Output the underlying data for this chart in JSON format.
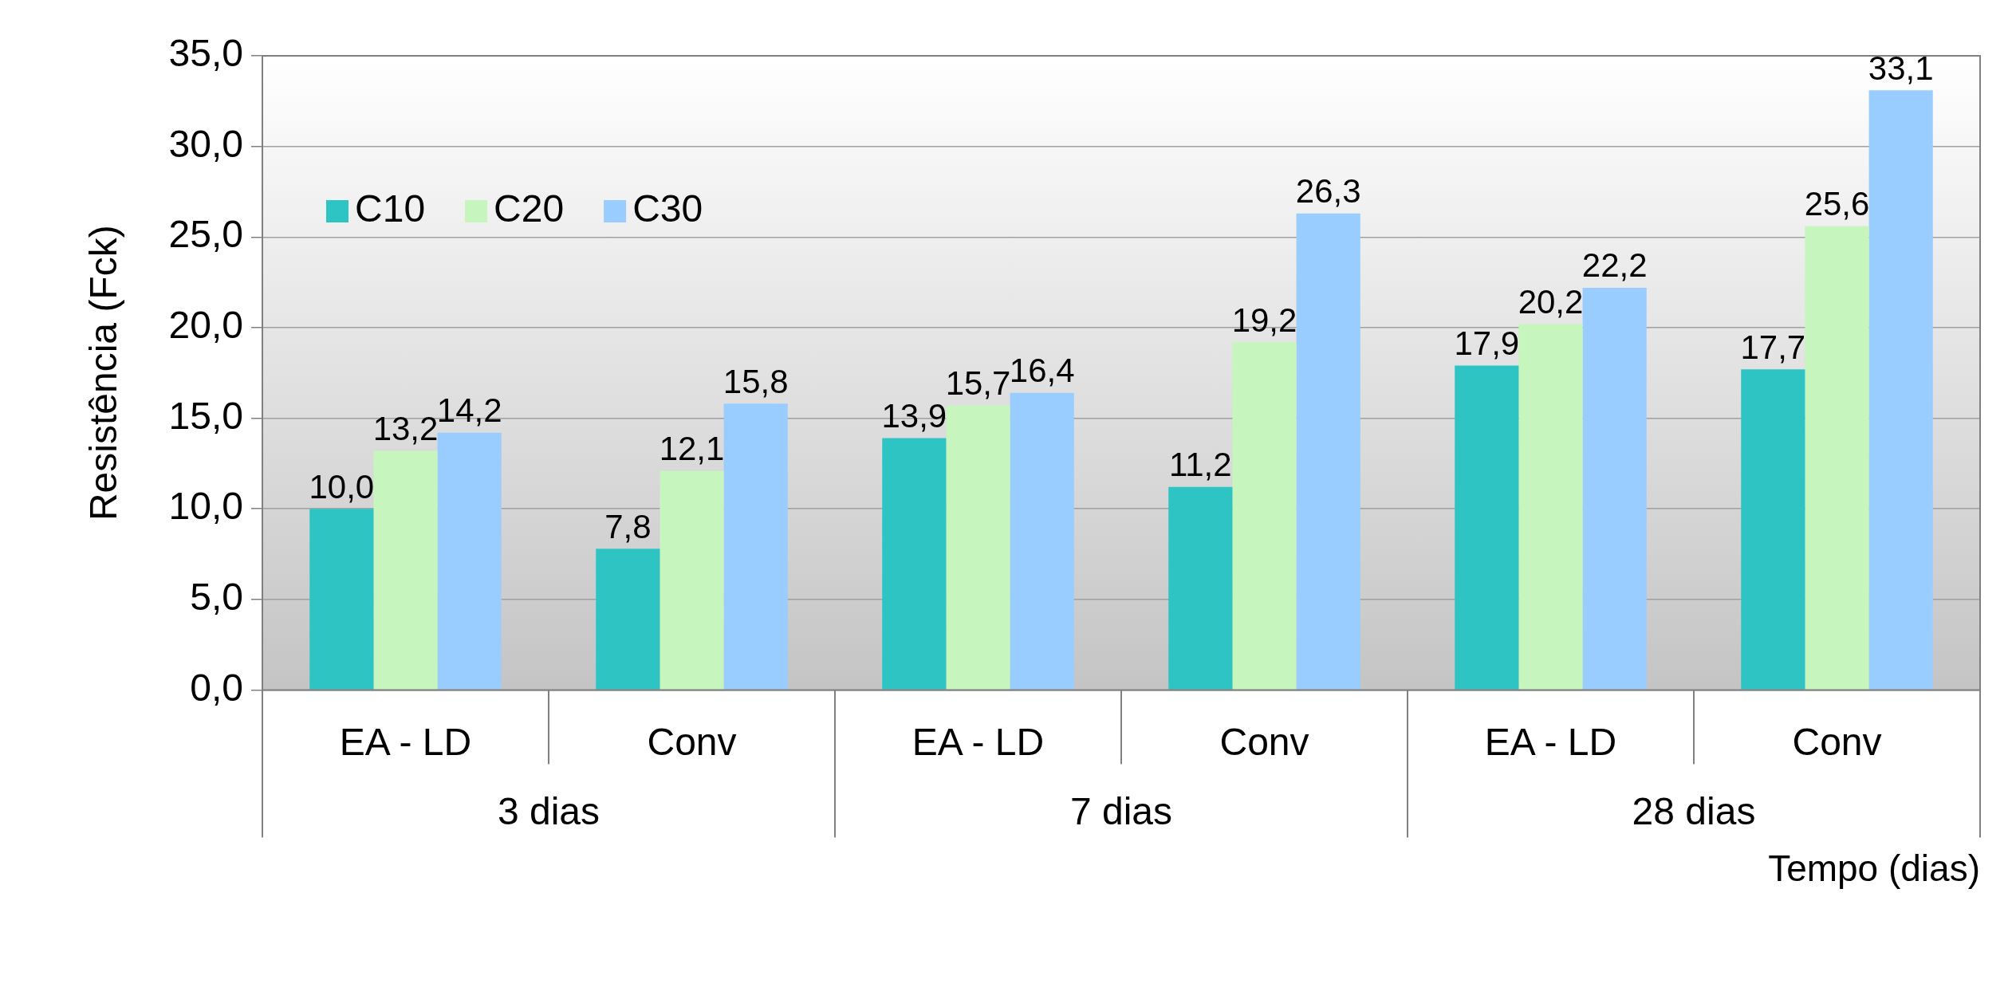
{
  "chart_data": {
    "type": "bar",
    "xlabel": "Tempo (dias)",
    "ylabel": "Resistência (Fck)",
    "categories": [
      "EA - LD",
      "Conv",
      "EA - LD",
      "Conv",
      "EA - LD",
      "Conv"
    ],
    "annotations": [
      "3 dias",
      "7 dias",
      "28 dias"
    ],
    "series": [
      {
        "name": "C10",
        "color": "#2ec4c4",
        "values": [
          10.0,
          7.8,
          13.9,
          11.2,
          17.9,
          17.7
        ],
        "value_labels": [
          "10,0",
          "7,8",
          "13,9",
          "11,2",
          "17,9",
          "17,7"
        ]
      },
      {
        "name": "C20",
        "color": "#c6f5bd",
        "values": [
          13.2,
          12.1,
          15.7,
          19.2,
          20.2,
          25.6
        ],
        "value_labels": [
          "13,2",
          "12,1",
          "15,7",
          "19,2",
          "20,2",
          "25,6"
        ]
      },
      {
        "name": "C30",
        "color": "#99ccff",
        "values": [
          14.2,
          15.8,
          16.4,
          26.3,
          22.2,
          33.1
        ],
        "value_labels": [
          "14,2",
          "15,8",
          "16,4",
          "26,3",
          "22,2",
          "33,1"
        ]
      }
    ],
    "ylim": [
      0,
      35
    ],
    "yticks": [
      {
        "value": 0,
        "label": "0,0"
      },
      {
        "value": 5,
        "label": "5,0"
      },
      {
        "value": 10,
        "label": "10,0"
      },
      {
        "value": 15,
        "label": "15,0"
      },
      {
        "value": 20,
        "label": "20,0"
      },
      {
        "value": 25,
        "label": "25,0"
      },
      {
        "value": 30,
        "label": "30,0"
      },
      {
        "value": 35,
        "label": "35,0"
      }
    ],
    "grid": "y",
    "legend": "top left"
  }
}
